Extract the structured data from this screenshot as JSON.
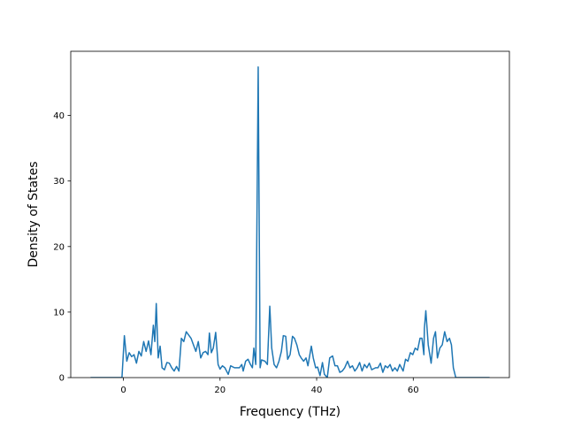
{
  "chart_data": {
    "type": "line",
    "xlabel": "Frequency (THz)",
    "ylabel": "Density of States",
    "color": "#1f77b4",
    "x": [
      -6.8,
      -0.3,
      0.2,
      0.7,
      1.2,
      1.7,
      2.2,
      2.7,
      3.2,
      3.7,
      4.2,
      4.7,
      5.2,
      5.7,
      6.2,
      6.5,
      6.8,
      7.2,
      7.6,
      8,
      8.5,
      9,
      9.5,
      10,
      10.5,
      11,
      11.5,
      12,
      12.5,
      13,
      13.5,
      14,
      14.5,
      15,
      15.5,
      16,
      16.5,
      17,
      17.5,
      17.8,
      18.2,
      18.6,
      19.1,
      19.6,
      20,
      20.5,
      21,
      21.7,
      22.2,
      23,
      24,
      24.5,
      24.8,
      25.3,
      25.8,
      26.3,
      26.7,
      27,
      27.4,
      27.9,
      28.3,
      28.6,
      29.3,
      29.8,
      30.3,
      30.7,
      31.2,
      31.7,
      32.2,
      32.7,
      33.1,
      33.6,
      34,
      34.5,
      35,
      35.4,
      35.9,
      36.4,
      36.8,
      37.3,
      37.8,
      38.2,
      38.9,
      39.3,
      39.8,
      40.2,
      40.7,
      41.2,
      41.6,
      42.2,
      42.7,
      43.3,
      43.8,
      44.3,
      44.8,
      45.3,
      45.8,
      46.4,
      46.9,
      47.4,
      47.9,
      48.4,
      48.9,
      49.4,
      49.9,
      50.4,
      50.9,
      51.4,
      52.2,
      52.7,
      53.2,
      53.7,
      54.2,
      54.7,
      55.2,
      55.7,
      56.2,
      56.7,
      57.2,
      57.9,
      58.4,
      58.9,
      59.4,
      59.9,
      60.4,
      60.9,
      61.4,
      61.8,
      62.2,
      62.3,
      62.6,
      63.1,
      63.7,
      64.2,
      64.6,
      65,
      65.5,
      66,
      66.5,
      67,
      67.5,
      67.9,
      68.3,
      68.8,
      75.8
    ],
    "values": [
      0,
      0,
      6.4,
      2.5,
      3.8,
      3.2,
      3.5,
      2.2,
      4,
      3.3,
      5.5,
      4,
      5.6,
      3.5,
      8,
      5.5,
      11.3,
      3,
      4.8,
      1.5,
      1.2,
      2.3,
      2.2,
      1.5,
      1,
      1.7,
      1,
      6,
      5.5,
      7,
      6.5,
      6,
      5,
      4,
      5.5,
      3,
      3.8,
      4,
      3.5,
      6.8,
      3.8,
      4.5,
      6.9,
      2,
      1.3,
      1.8,
      1.5,
      0.5,
      1.8,
      1.5,
      1.5,
      2,
      1,
      2.5,
      2.8,
      2,
      1.5,
      4.5,
      2,
      47.4,
      1.5,
      2.7,
      2.5,
      2,
      10.9,
      4.5,
      2,
      1.5,
      2.5,
      4,
      6.4,
      6.3,
      2.8,
      3.5,
      6.3,
      6,
      5,
      3.5,
      3,
      2.5,
      3,
      1.8,
      4.8,
      3,
      1.5,
      1.6,
      0.3,
      2.3,
      0.5,
      0,
      3,
      3.3,
      1.8,
      1.8,
      0.8,
      1,
      1.5,
      2.5,
      1.5,
      1.8,
      1,
      1.5,
      2.3,
      1,
      2,
      1.5,
      2.2,
      1.2,
      1.5,
      1.5,
      2.2,
      0.8,
      1.8,
      1.5,
      2,
      1,
      1.5,
      1,
      2,
      1,
      2.8,
      2.5,
      3.8,
      3.5,
      4.5,
      4.2,
      6,
      6,
      3.5,
      7.5,
      10.2,
      5,
      2.2,
      6,
      7,
      3,
      4.5,
      5,
      7,
      5.5,
      6,
      5,
      1.5,
      0,
      0
    ],
    "xlim": [
      -10.9,
      79.9
    ],
    "ylim": [
      0,
      49.8
    ],
    "xticks": [
      0,
      20,
      40,
      60
    ],
    "yticks": [
      0,
      10,
      20,
      30,
      40
    ]
  }
}
